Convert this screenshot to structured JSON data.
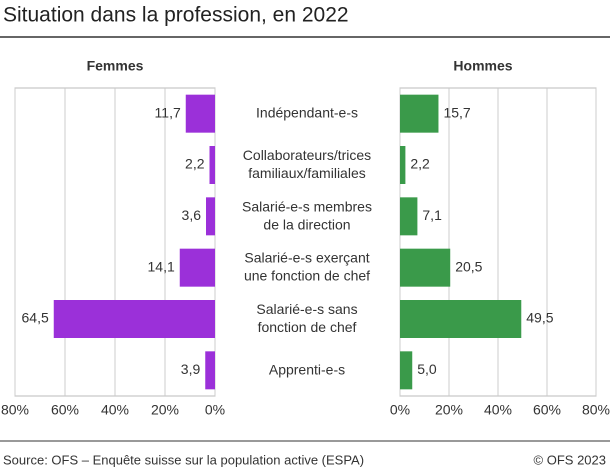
{
  "chart_data": {
    "type": "butterfly",
    "title": "Situation dans la profession, en 2022",
    "categories": [
      "Indépendant-e-s",
      "Collaborateurs/trices\nfamiliaux/familiales",
      "Salarié-e-s membres\nde la direction",
      "Salarié-e-s exerçant\nune fonction de chef",
      "Salarié-e-s sans\nfonction de chef",
      "Apprenti-e-s"
    ],
    "series": [
      {
        "name": "Femmes",
        "color": "#9b30d9",
        "values": [
          11.7,
          2.2,
          3.6,
          14.1,
          64.5,
          3.9
        ],
        "value_labels": [
          "11,7",
          "2,2",
          "3,6",
          "14,1",
          "64,5",
          "3,9"
        ],
        "xlim": [
          80,
          0
        ],
        "xticks": [
          {
            "value": 80,
            "label": "80%"
          },
          {
            "value": 60,
            "label": "60%"
          },
          {
            "value": 40,
            "label": "40%"
          },
          {
            "value": 20,
            "label": "20%"
          },
          {
            "value": 0,
            "label": "0%"
          }
        ]
      },
      {
        "name": "Hommes",
        "color": "#3a9a4a",
        "values": [
          15.7,
          2.2,
          7.1,
          20.5,
          49.5,
          5.0
        ],
        "value_labels": [
          "15,7",
          "2,2",
          "7,1",
          "20,5",
          "49,5",
          "5,0"
        ],
        "xlim": [
          0,
          80
        ],
        "xticks": [
          {
            "value": 0,
            "label": "0%"
          },
          {
            "value": 20,
            "label": "20%"
          },
          {
            "value": 40,
            "label": "40%"
          },
          {
            "value": 60,
            "label": "60%"
          },
          {
            "value": 80,
            "label": "80%"
          }
        ]
      }
    ],
    "grid": true,
    "source": "Source: OFS – Enquête suisse sur la population active (ESPA)",
    "copyright": "© OFS 2023"
  }
}
